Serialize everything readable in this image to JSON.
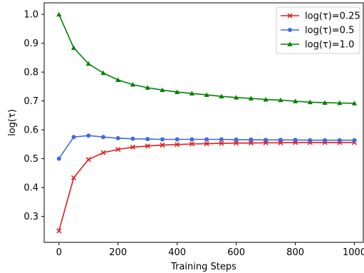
{
  "chart_data": {
    "type": "line",
    "xlabel": "Training Steps",
    "ylabel": "log(τ)",
    "xlim": [
      -50,
      1030
    ],
    "ylim": [
      0.21,
      1.04
    ],
    "x_ticks": [
      0,
      200,
      400,
      600,
      800,
      1000
    ],
    "x_tick_labels": [
      "0",
      "200",
      "400",
      "600",
      "800",
      "1000"
    ],
    "y_ticks": [
      0.3,
      0.4,
      0.5,
      0.6,
      0.7,
      0.8,
      0.9,
      1.0
    ],
    "y_tick_labels": [
      "0.3",
      "0.4",
      "0.5",
      "0.6",
      "0.7",
      "0.8",
      "0.9",
      "1.0"
    ],
    "grid": false,
    "legend_position": "top-right",
    "x": [
      0,
      50,
      100,
      150,
      200,
      250,
      300,
      350,
      400,
      450,
      500,
      550,
      600,
      650,
      700,
      750,
      800,
      850,
      900,
      950,
      1000
    ],
    "series": [
      {
        "name": "log(τ)=0.25",
        "color": "#e31a1c",
        "marker": "x",
        "values": [
          0.25,
          0.434,
          0.497,
          0.521,
          0.532,
          0.54,
          0.544,
          0.547,
          0.549,
          0.551,
          0.552,
          0.553,
          0.554,
          0.554,
          0.555,
          0.555,
          0.556,
          0.556,
          0.556,
          0.556,
          0.556
        ]
      },
      {
        "name": "log(τ)=0.5",
        "color": "#4169e1",
        "marker": "circle",
        "values": [
          0.5,
          0.575,
          0.58,
          0.575,
          0.571,
          0.569,
          0.568,
          0.567,
          0.567,
          0.567,
          0.567,
          0.567,
          0.566,
          0.566,
          0.565,
          0.565,
          0.565,
          0.564,
          0.564,
          0.564,
          0.564
        ]
      },
      {
        "name": "log(τ)=1.0",
        "color": "#008000",
        "marker": "triangle",
        "values": [
          1.0,
          0.884,
          0.829,
          0.797,
          0.773,
          0.757,
          0.746,
          0.738,
          0.731,
          0.726,
          0.721,
          0.716,
          0.712,
          0.709,
          0.705,
          0.703,
          0.699,
          0.696,
          0.694,
          0.693,
          0.692
        ]
      }
    ]
  }
}
